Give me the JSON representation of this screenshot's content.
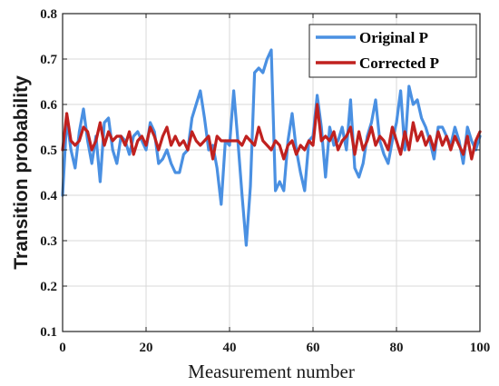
{
  "chart_data": {
    "type": "line",
    "xlabel": "Measurement number",
    "ylabel": "Transition probability",
    "xlim": [
      0,
      100
    ],
    "ylim": [
      0.1,
      0.8
    ],
    "xticks": [
      0,
      20,
      40,
      60,
      80,
      100
    ],
    "yticks": [
      0.1,
      0.2,
      0.3,
      0.4,
      0.5,
      0.6,
      0.7,
      0.8
    ],
    "xtick_labels": [
      "0",
      "20",
      "40",
      "60",
      "80",
      "100"
    ],
    "ytick_labels": [
      "0.1",
      "0.2",
      "0.3",
      "0.4",
      "0.5",
      "0.6",
      "0.7",
      "0.8"
    ],
    "grid": true,
    "legend_position": "top-right",
    "series": [
      {
        "name": "Original P",
        "color": "#4a90e2",
        "x": [
          0,
          1,
          2,
          3,
          4,
          5,
          6,
          7,
          8,
          9,
          10,
          11,
          12,
          13,
          14,
          15,
          16,
          17,
          18,
          19,
          20,
          21,
          22,
          23,
          24,
          25,
          26,
          27,
          28,
          29,
          30,
          31,
          32,
          33,
          34,
          35,
          36,
          37,
          38,
          39,
          40,
          41,
          42,
          43,
          44,
          45,
          46,
          47,
          48,
          49,
          50,
          51,
          52,
          53,
          54,
          55,
          56,
          57,
          58,
          59,
          60,
          61,
          62,
          63,
          64,
          65,
          66,
          67,
          68,
          69,
          70,
          71,
          72,
          73,
          74,
          75,
          76,
          77,
          78,
          79,
          80,
          81,
          82,
          83,
          84,
          85,
          86,
          87,
          88,
          89,
          90,
          91,
          92,
          93,
          94,
          95,
          96,
          97,
          98,
          99,
          100
        ],
        "values": [
          0.4,
          0.57,
          0.5,
          0.46,
          0.54,
          0.59,
          0.52,
          0.47,
          0.53,
          0.43,
          0.56,
          0.57,
          0.5,
          0.47,
          0.53,
          0.52,
          0.49,
          0.53,
          0.54,
          0.52,
          0.5,
          0.56,
          0.54,
          0.47,
          0.48,
          0.5,
          0.47,
          0.45,
          0.45,
          0.49,
          0.5,
          0.57,
          0.6,
          0.63,
          0.57,
          0.5,
          0.51,
          0.46,
          0.38,
          0.52,
          0.51,
          0.63,
          0.52,
          0.4,
          0.29,
          0.42,
          0.67,
          0.68,
          0.67,
          0.7,
          0.72,
          0.41,
          0.43,
          0.41,
          0.52,
          0.58,
          0.5,
          0.45,
          0.41,
          0.52,
          0.53,
          0.62,
          0.55,
          0.44,
          0.55,
          0.51,
          0.52,
          0.55,
          0.5,
          0.61,
          0.46,
          0.44,
          0.47,
          0.53,
          0.56,
          0.61,
          0.52,
          0.49,
          0.47,
          0.52,
          0.56,
          0.63,
          0.5,
          0.64,
          0.6,
          0.61,
          0.57,
          0.55,
          0.52,
          0.48,
          0.55,
          0.55,
          0.53,
          0.51,
          0.55,
          0.52,
          0.47,
          0.55,
          0.52,
          0.5,
          0.53
        ]
      },
      {
        "name": "Corrected P",
        "color": "#c0211f",
        "x": [
          0,
          1,
          2,
          3,
          4,
          5,
          6,
          7,
          8,
          9,
          10,
          11,
          12,
          13,
          14,
          15,
          16,
          17,
          18,
          19,
          20,
          21,
          22,
          23,
          24,
          25,
          26,
          27,
          28,
          29,
          30,
          31,
          32,
          33,
          34,
          35,
          36,
          37,
          38,
          39,
          40,
          41,
          42,
          43,
          44,
          45,
          46,
          47,
          48,
          49,
          50,
          51,
          52,
          53,
          54,
          55,
          56,
          57,
          58,
          59,
          60,
          61,
          62,
          63,
          64,
          65,
          66,
          67,
          68,
          69,
          70,
          71,
          72,
          73,
          74,
          75,
          76,
          77,
          78,
          79,
          80,
          81,
          82,
          83,
          84,
          85,
          86,
          87,
          88,
          89,
          90,
          91,
          92,
          93,
          94,
          95,
          96,
          97,
          98,
          99,
          100
        ],
        "values": [
          0.5,
          0.58,
          0.52,
          0.51,
          0.52,
          0.55,
          0.54,
          0.5,
          0.52,
          0.56,
          0.51,
          0.54,
          0.52,
          0.53,
          0.53,
          0.51,
          0.54,
          0.49,
          0.52,
          0.53,
          0.51,
          0.55,
          0.53,
          0.5,
          0.53,
          0.55,
          0.51,
          0.53,
          0.51,
          0.52,
          0.5,
          0.54,
          0.52,
          0.51,
          0.52,
          0.53,
          0.48,
          0.53,
          0.52,
          0.52,
          0.52,
          0.52,
          0.52,
          0.51,
          0.53,
          0.52,
          0.51,
          0.55,
          0.52,
          0.51,
          0.5,
          0.52,
          0.51,
          0.48,
          0.51,
          0.52,
          0.49,
          0.51,
          0.5,
          0.52,
          0.51,
          0.6,
          0.52,
          0.53,
          0.52,
          0.54,
          0.5,
          0.52,
          0.53,
          0.55,
          0.49,
          0.54,
          0.5,
          0.52,
          0.55,
          0.51,
          0.53,
          0.52,
          0.5,
          0.55,
          0.52,
          0.49,
          0.54,
          0.5,
          0.56,
          0.52,
          0.54,
          0.51,
          0.53,
          0.5,
          0.54,
          0.51,
          0.53,
          0.5,
          0.53,
          0.51,
          0.49,
          0.53,
          0.48,
          0.52,
          0.54
        ]
      }
    ]
  }
}
